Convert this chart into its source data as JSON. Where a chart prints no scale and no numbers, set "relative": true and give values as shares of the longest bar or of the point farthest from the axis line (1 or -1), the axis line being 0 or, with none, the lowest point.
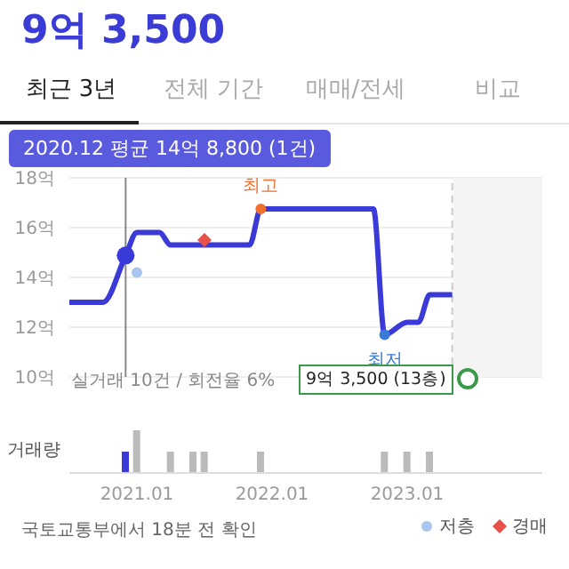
{
  "chart_data": [
    {
      "type": "line",
      "title": "9억 3,500",
      "x": [
        "2020-07",
        "2020-10",
        "2020-12",
        "2021-01",
        "2021-03",
        "2021-04",
        "2021-11",
        "2021-12",
        "2022-10",
        "2022-11",
        "2023-01",
        "2023-02",
        "2023-03",
        "2023-05"
      ],
      "series": [
        {
          "color": "#3a3ad8",
          "values": [
            13.0,
            13.0,
            14.88,
            15.8,
            15.8,
            15.3,
            15.3,
            16.75,
            16.75,
            11.7,
            12.2,
            12.2,
            13.3,
            13.3
          ]
        },
        {
          "name": "저층",
          "type": "scatter",
          "color": "#a9c4f0",
          "marker": "circle",
          "x": [
            "2021-01"
          ],
          "values": [
            14.2
          ]
        },
        {
          "name": "경매",
          "type": "scatter",
          "color": "#e8504a",
          "marker": "diamond",
          "x": [
            "2021-07"
          ],
          "values": [
            15.5
          ]
        }
      ],
      "xlim": [
        "2020-07",
        "2024-01"
      ],
      "ylim": [
        10,
        18
      ],
      "yticks": [
        {
          "value": 10,
          "label": "10억"
        },
        {
          "value": 12,
          "label": "12억"
        },
        {
          "value": 14,
          "label": "14억"
        },
        {
          "value": 16,
          "label": "16억"
        },
        {
          "value": 18,
          "label": "18억"
        }
      ],
      "grid": "y",
      "legend": "bottom right",
      "tick_labels": "y",
      "line_style": "solid",
      "ref_lines": [
        {
          "axis": "x",
          "value": "2020-12",
          "color": "#888888",
          "line_style": "solid"
        },
        {
          "axis": "x",
          "value": "2023-05",
          "color": "#cccccc",
          "line_style": "dashed"
        }
      ],
      "bands": [
        {
          "axis": "x",
          "from": "2023-05",
          "to": "2024-01",
          "color": "#f4f4f4"
        }
      ],
      "annotations": [
        "최근 3년",
        "전체 기간",
        "매매/전세",
        "비교",
        "2020.12 평균 14억 8,800 (1건)",
        {
          "text": "최고",
          "x": "2021-12",
          "y": 16.75
        },
        {
          "text": "최저",
          "x": "2022-11",
          "y": 11.7
        },
        "실거래 10건 / 회전율 6%",
        "9억 3,500 (13층)",
        "국토교통부에서 18분 전 확인"
      ]
    },
    {
      "type": "bar",
      "ylabel": "거래량",
      "relative": true,
      "x": [
        "2020-12",
        "2021-01",
        "2021-04",
        "2021-06",
        "2021-07",
        "2021-12",
        "2022-11",
        "2023-01",
        "2023-03"
      ],
      "values": [
        0.5,
        1,
        0.5,
        0.5,
        0.5,
        0.5,
        0.5,
        0.5,
        0.5
      ],
      "colors": [
        "#3a3ad8",
        "#bbbbbb",
        "#bbbbbb",
        "#bbbbbb",
        "#bbbbbb",
        "#bbbbbb",
        "#bbbbbb",
        "#bbbbbb",
        "#bbbbbb"
      ],
      "xlim": [
        "2020-07",
        "2024-01"
      ],
      "xticks": [
        {
          "value": "2021-01",
          "label": "2021.01"
        },
        {
          "value": "2022-01",
          "label": "2022.01"
        },
        {
          "value": "2023-01",
          "label": "2023.01"
        }
      ],
      "tick_labels": "x"
    }
  ]
}
